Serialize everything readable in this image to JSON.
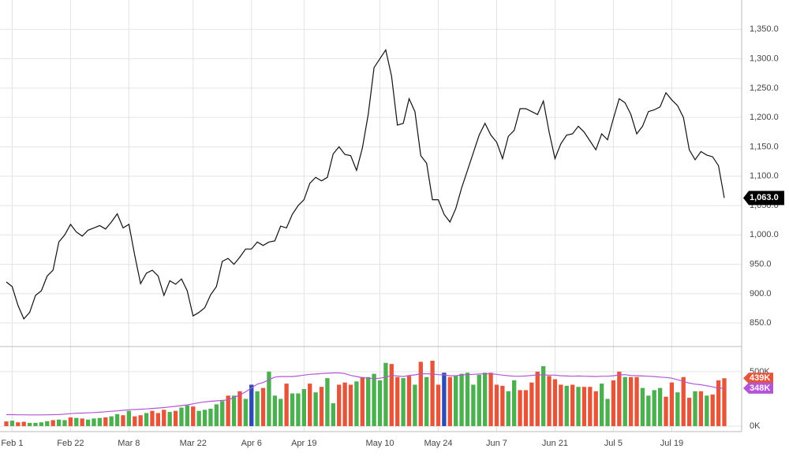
{
  "chart_data": [
    {
      "type": "line",
      "color": "#111111",
      "values": [
        920,
        912,
        880,
        857,
        868,
        897,
        905,
        930,
        940,
        988,
        1000,
        1018,
        1005,
        998,
        1008,
        1012,
        1016,
        1010,
        1022,
        1036,
        1012,
        1018,
        965,
        917,
        935,
        940,
        930,
        897,
        922,
        916,
        925,
        905,
        862,
        868,
        876,
        898,
        912,
        955,
        960,
        950,
        962,
        976,
        976,
        988,
        982,
        988,
        990,
        1015,
        1012,
        1035,
        1050,
        1060,
        1088,
        1098,
        1092,
        1098,
        1138,
        1150,
        1137,
        1135,
        1110,
        1148,
        1205,
        1285,
        1300,
        1315,
        1270,
        1187,
        1190,
        1232,
        1210,
        1135,
        1122,
        1060,
        1060,
        1035,
        1022,
        1045,
        1080,
        1110,
        1140,
        1170,
        1190,
        1170,
        1158,
        1130,
        1168,
        1178,
        1215,
        1215,
        1210,
        1205,
        1228,
        1175,
        1130,
        1155,
        1170,
        1172,
        1185,
        1175,
        1160,
        1145,
        1172,
        1162,
        1198,
        1232,
        1225,
        1205,
        1172,
        1185,
        1210,
        1213,
        1218,
        1242,
        1230,
        1220,
        1200,
        1145,
        1128,
        1142,
        1136,
        1133,
        1118,
        1063
      ],
      "last_label": {
        "value": 1063,
        "label": "1,063.0"
      },
      "ylim": [
        810,
        1400
      ],
      "yticks": [
        {
          "value": 850,
          "label": "850.0"
        },
        {
          "value": 900,
          "label": "900.0"
        },
        {
          "value": 950,
          "label": "950.0"
        },
        {
          "value": 1000,
          "label": "1,000.0"
        },
        {
          "value": 1050,
          "label": "1,050.0"
        },
        {
          "value": 1100,
          "label": "1,100.0"
        },
        {
          "value": 1150,
          "label": "1,150.0"
        },
        {
          "value": 1200,
          "label": "1,200.0"
        },
        {
          "value": 1250,
          "label": "1,250.0"
        },
        {
          "value": 1300,
          "label": "1,300.0"
        },
        {
          "value": 1350,
          "label": "1,350.0"
        }
      ],
      "grid": true
    },
    {
      "type": "bar",
      "categories": [
        null,
        "Feb 1",
        null,
        null,
        null,
        null,
        null,
        null,
        null,
        null,
        null,
        "Feb 22",
        null,
        null,
        null,
        null,
        null,
        null,
        null,
        null,
        null,
        "Mar 8",
        null,
        null,
        null,
        null,
        null,
        null,
        null,
        null,
        null,
        null,
        "Mar 22",
        null,
        null,
        null,
        null,
        null,
        null,
        null,
        null,
        null,
        "Apr 6",
        null,
        null,
        null,
        null,
        null,
        null,
        null,
        null,
        "Apr 19",
        null,
        null,
        null,
        null,
        null,
        null,
        null,
        null,
        null,
        null,
        null,
        null,
        "May 10",
        null,
        null,
        null,
        null,
        null,
        null,
        null,
        null,
        null,
        "May 24",
        null,
        null,
        null,
        null,
        null,
        null,
        null,
        null,
        null,
        "Jun 7",
        null,
        null,
        null,
        null,
        null,
        null,
        null,
        null,
        null,
        "Jun 21",
        null,
        null,
        null,
        null,
        null,
        null,
        null,
        null,
        null,
        "Jul 5",
        null,
        null,
        null,
        null,
        null,
        null,
        null,
        null,
        null,
        "Jul 19",
        null,
        null,
        null,
        null,
        null,
        null,
        null,
        null,
        null
      ],
      "values": [
        43,
        50,
        35,
        40,
        30,
        30,
        35,
        45,
        55,
        60,
        55,
        80,
        75,
        70,
        60,
        70,
        75,
        80,
        90,
        110,
        100,
        140,
        90,
        100,
        120,
        140,
        120,
        150,
        130,
        140,
        170,
        190,
        180,
        140,
        150,
        160,
        200,
        230,
        280,
        280,
        320,
        250,
        380,
        320,
        350,
        500,
        280,
        250,
        390,
        300,
        300,
        340,
        390,
        310,
        360,
        440,
        210,
        380,
        400,
        380,
        410,
        450,
        450,
        480,
        420,
        580,
        570,
        450,
        440,
        460,
        380,
        590,
        450,
        600,
        380,
        490,
        450,
        460,
        480,
        490,
        380,
        470,
        490,
        490,
        380,
        370,
        320,
        420,
        330,
        330,
        400,
        500,
        550,
        460,
        430,
        380,
        370,
        380,
        360,
        360,
        360,
        320,
        390,
        250,
        420,
        500,
        450,
        450,
        450,
        350,
        280,
        330,
        350,
        270,
        400,
        310,
        450,
        260,
        320,
        320,
        280,
        290,
        420,
        439
      ],
      "colors": [
        "#e4553a",
        "#4caf50",
        "#e4553a",
        "#e4553a",
        "#4caf50",
        "#4caf50",
        "#4caf50",
        "#4caf50",
        "#e4553a",
        "#4caf50",
        "#4caf50",
        "#e4553a",
        "#4caf50",
        "#e4553a",
        "#4caf50",
        "#4caf50",
        "#4caf50",
        "#e4553a",
        "#4caf50",
        "#4caf50",
        "#e4553a",
        "#4caf50",
        "#e4553a",
        "#e4553a",
        "#4caf50",
        "#e4553a",
        "#e4553a",
        "#e4553a",
        "#4caf50",
        "#e4553a",
        "#4caf50",
        "#4caf50",
        "#e4553a",
        "#4caf50",
        "#4caf50",
        "#4caf50",
        "#4caf50",
        "#4caf50",
        "#e4553a",
        "#4caf50",
        "#e4553a",
        "#4caf50",
        "#2c4bb5",
        "#4caf50",
        "#e4553a",
        "#4caf50",
        "#4caf50",
        "#4caf50",
        "#e4553a",
        "#4caf50",
        "#4caf50",
        "#4caf50",
        "#e4553a",
        "#4caf50",
        "#e4553a",
        "#4caf50",
        "#4caf50",
        "#e4553a",
        "#e4553a",
        "#e4553a",
        "#4caf50",
        "#e4553a",
        "#4caf50",
        "#4caf50",
        "#4caf50",
        "#4caf50",
        "#e4553a",
        "#e4553a",
        "#4caf50",
        "#e4553a",
        "#4caf50",
        "#e4553a",
        "#4caf50",
        "#e4553a",
        "#e4553a",
        "#2c4bb5",
        "#e4553a",
        "#4caf50",
        "#4caf50",
        "#4caf50",
        "#4caf50",
        "#4caf50",
        "#4caf50",
        "#e4553a",
        "#e4553a",
        "#e4553a",
        "#4caf50",
        "#4caf50",
        "#e4553a",
        "#e4553a",
        "#e4553a",
        "#e4553a",
        "#4caf50",
        "#e4553a",
        "#e4553a",
        "#e4553a",
        "#4caf50",
        "#e4553a",
        "#4caf50",
        "#e4553a",
        "#e4553a",
        "#e4553a",
        "#4caf50",
        "#4caf50",
        "#e4553a",
        "#e4553a",
        "#4caf50",
        "#e4553a",
        "#e4553a",
        "#4caf50",
        "#4caf50",
        "#4caf50",
        "#4caf50",
        "#e4553a",
        "#e4553a",
        "#4caf50",
        "#e4553a",
        "#e4553a",
        "#4caf50",
        "#e4553a",
        "#4caf50",
        "#e4553a",
        "#e4553a",
        "#e4553a"
      ],
      "last_label": {
        "value": 439,
        "label": "439K",
        "color": "#e4553a"
      },
      "average": {
        "color": "#b455d6",
        "values": [
          105,
          105,
          104,
          104,
          103,
          103,
          103,
          104,
          105,
          106,
          110,
          115,
          118,
          120,
          122,
          125,
          128,
          132,
          136,
          140,
          145,
          150,
          152,
          155,
          158,
          162,
          166,
          170,
          176,
          182,
          188,
          195,
          205,
          215,
          222,
          228,
          232,
          236,
          240,
          262,
          285,
          315,
          350,
          385,
          400,
          425,
          450,
          455,
          455,
          455,
          460,
          468,
          475,
          478,
          482,
          485,
          488,
          488,
          482,
          465,
          455,
          445,
          440,
          435,
          440,
          450,
          465,
          460,
          455,
          465,
          470,
          480,
          480,
          478,
          472,
          470,
          462,
          462,
          470,
          472,
          475,
          478,
          480,
          480,
          475,
          468,
          462,
          458,
          458,
          460,
          465,
          470,
          470,
          468,
          468,
          462,
          460,
          458,
          460,
          458,
          456,
          455,
          458,
          458,
          462,
          470,
          472,
          465,
          462,
          460,
          458,
          455,
          450,
          446,
          440,
          425,
          410,
          395,
          385,
          380,
          370,
          360,
          348,
          348
        ],
        "last_label": {
          "value": 348,
          "label": "348K"
        }
      },
      "ylim": [
        -50,
        730
      ],
      "yticks": [
        {
          "value": 0,
          "label": "0K"
        },
        {
          "value": 500,
          "label": "500K"
        }
      ],
      "grid": true
    }
  ]
}
